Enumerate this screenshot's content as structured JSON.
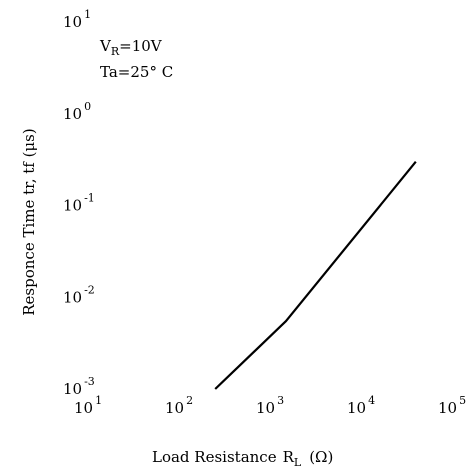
{
  "chart_data": {
    "type": "line",
    "title": "",
    "xlabel": "Load Resistance",
    "xlabel_symbol": "R",
    "xlabel_subscript": "L",
    "xlabel_unit": "(Ω)",
    "ylabel": "Responce Time tr, tf  (μs)",
    "x_scale": "log",
    "y_scale": "log",
    "xlim": [
      10,
      100000
    ],
    "ylim": [
      0.001,
      10
    ],
    "x_ticks": [
      {
        "base": "10",
        "exp": "1"
      },
      {
        "base": "10",
        "exp": "2"
      },
      {
        "base": "10",
        "exp": "3"
      },
      {
        "base": "10",
        "exp": "4"
      },
      {
        "base": "10",
        "exp": "5"
      }
    ],
    "y_ticks": [
      {
        "base": "10",
        "exp": "-3"
      },
      {
        "base": "10",
        "exp": "-2"
      },
      {
        "base": "10",
        "exp": "-1"
      },
      {
        "base": "10",
        "exp": "0"
      },
      {
        "base": "10",
        "exp": "1"
      }
    ],
    "grid": false,
    "annotations": {
      "vr_symbol": "V",
      "vr_subscript": "R",
      "vr_value": "=10V",
      "ta": "Ta=25° C"
    },
    "series": [
      {
        "color": "#000000",
        "x": [
          250,
          1500,
          40000
        ],
        "y": [
          0.001,
          0.0055,
          0.3
        ]
      }
    ]
  }
}
